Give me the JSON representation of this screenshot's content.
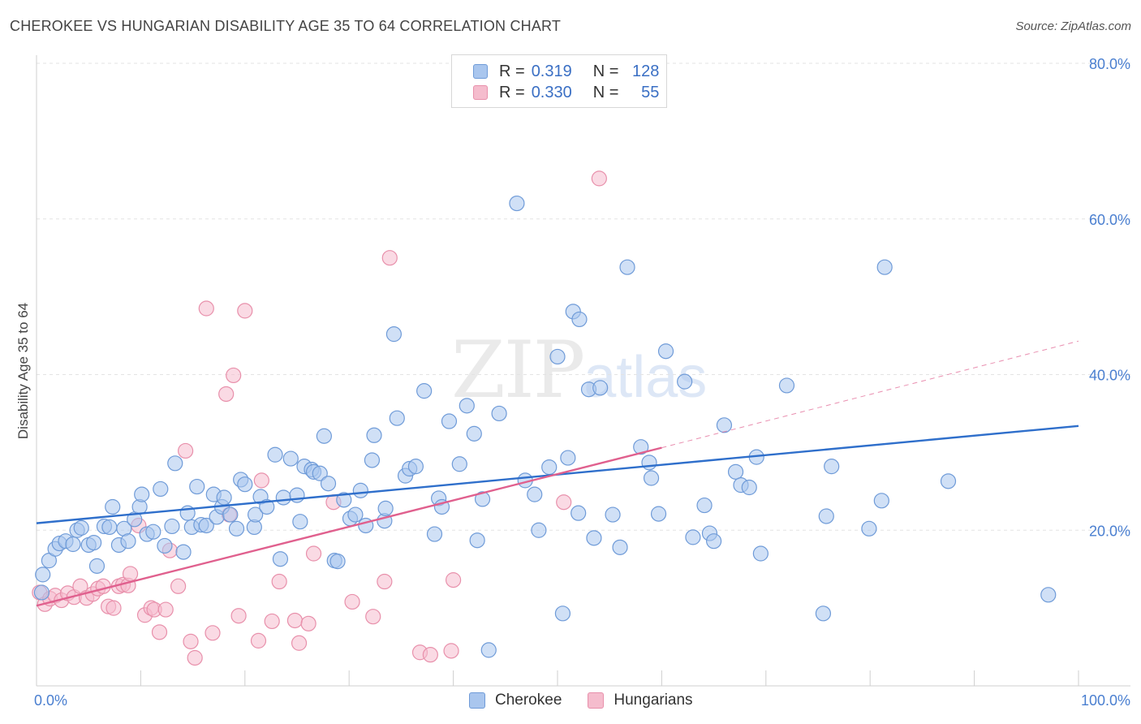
{
  "title": "CHEROKEE VS HUNGARIAN DISABILITY AGE 35 TO 64 CORRELATION CHART",
  "source": "Source: ZipAtlas.com",
  "watermark": {
    "zip": "ZIP",
    "atlas": "atlas"
  },
  "legend": {
    "rows": [
      {
        "r_label": "R =",
        "r_value": "0.319",
        "n_label": "N =",
        "n_value": "128"
      },
      {
        "r_label": "R =",
        "r_value": "0.330",
        "n_label": "N =",
        "n_value": "55"
      }
    ]
  },
  "bottom_legend": [
    "Cherokee",
    "Hungarians"
  ],
  "colors": {
    "cherokee_fill": "#a9c6ee",
    "cherokee_stroke": "#6f9bd8",
    "cherokee_line": "#2f6fcb",
    "hungarian_fill": "#f5bccd",
    "hungarian_stroke": "#e890ab",
    "hungarian_line": "#e0608e",
    "grid": "#e3e3e3",
    "tick_text": "#4a7fd0"
  },
  "chart_data": {
    "type": "scatter",
    "title": "CHEROKEE VS HUNGARIAN DISABILITY AGE 35 TO 64 CORRELATION CHART",
    "xlabel": "",
    "ylabel": "Disability Age 35 to 64",
    "xlim": [
      0,
      100
    ],
    "ylim": [
      0,
      80
    ],
    "x_tick_labels": [
      "0.0%",
      "100.0%"
    ],
    "y_ticks": [
      20,
      40,
      60,
      80
    ],
    "y_tick_labels": [
      "20.0%",
      "40.0%",
      "60.0%",
      "80.0%"
    ],
    "grid": "horizontal dashed",
    "legend_position": "top-center",
    "series": [
      {
        "name": "Cherokee",
        "R": 0.319,
        "N": 128,
        "trend": {
          "x": [
            0,
            100
          ],
          "y": [
            20.9,
            33.4
          ]
        },
        "points": [
          [
            0.5,
            12.0
          ],
          [
            0.6,
            14.3
          ],
          [
            1.2,
            16.1
          ],
          [
            1.8,
            17.6
          ],
          [
            2.2,
            18.3
          ],
          [
            2.8,
            18.6
          ],
          [
            3.5,
            18.2
          ],
          [
            3.9,
            20.0
          ],
          [
            4.3,
            20.3
          ],
          [
            5.0,
            18.1
          ],
          [
            5.5,
            18.4
          ],
          [
            5.8,
            15.4
          ],
          [
            6.5,
            20.5
          ],
          [
            7.0,
            20.4
          ],
          [
            7.3,
            23.0
          ],
          [
            7.9,
            18.1
          ],
          [
            8.4,
            20.2
          ],
          [
            8.8,
            18.6
          ],
          [
            9.4,
            21.4
          ],
          [
            9.9,
            23.0
          ],
          [
            10.1,
            24.6
          ],
          [
            10.6,
            19.5
          ],
          [
            11.2,
            19.8
          ],
          [
            11.9,
            25.3
          ],
          [
            12.3,
            18.0
          ],
          [
            13.0,
            20.5
          ],
          [
            13.3,
            28.6
          ],
          [
            14.1,
            17.2
          ],
          [
            14.5,
            22.2
          ],
          [
            14.9,
            20.4
          ],
          [
            15.4,
            25.6
          ],
          [
            15.8,
            20.7
          ],
          [
            16.3,
            20.6
          ],
          [
            17.0,
            24.6
          ],
          [
            17.3,
            21.7
          ],
          [
            17.8,
            23.0
          ],
          [
            18.0,
            24.2
          ],
          [
            18.6,
            22.0
          ],
          [
            19.2,
            20.2
          ],
          [
            19.6,
            26.5
          ],
          [
            20.0,
            25.9
          ],
          [
            20.9,
            20.4
          ],
          [
            21.0,
            22.0
          ],
          [
            21.5,
            24.3
          ],
          [
            22.1,
            23.0
          ],
          [
            22.9,
            29.7
          ],
          [
            23.4,
            16.3
          ],
          [
            23.7,
            24.2
          ],
          [
            24.4,
            29.2
          ],
          [
            25.0,
            24.5
          ],
          [
            25.3,
            21.1
          ],
          [
            25.7,
            28.2
          ],
          [
            26.4,
            27.8
          ],
          [
            26.6,
            27.5
          ],
          [
            27.2,
            27.3
          ],
          [
            27.6,
            32.1
          ],
          [
            28.0,
            26.0
          ],
          [
            28.6,
            16.1
          ],
          [
            28.9,
            16.0
          ],
          [
            29.5,
            23.9
          ],
          [
            30.1,
            21.5
          ],
          [
            30.6,
            22.0
          ],
          [
            31.1,
            25.1
          ],
          [
            31.6,
            20.6
          ],
          [
            32.2,
            29.0
          ],
          [
            32.4,
            32.2
          ],
          [
            33.4,
            21.2
          ],
          [
            33.5,
            22.8
          ],
          [
            34.3,
            45.2
          ],
          [
            34.6,
            34.4
          ],
          [
            35.4,
            27.0
          ],
          [
            35.8,
            27.9
          ],
          [
            36.4,
            28.2
          ],
          [
            37.2,
            37.9
          ],
          [
            38.2,
            19.5
          ],
          [
            38.6,
            24.1
          ],
          [
            38.9,
            23.0
          ],
          [
            39.6,
            34.0
          ],
          [
            40.6,
            28.5
          ],
          [
            41.3,
            36.0
          ],
          [
            42.0,
            32.4
          ],
          [
            42.3,
            18.7
          ],
          [
            42.8,
            24.0
          ],
          [
            44.4,
            35.0
          ],
          [
            43.4,
            4.6
          ],
          [
            46.1,
            62.0
          ],
          [
            46.9,
            26.4
          ],
          [
            47.8,
            24.6
          ],
          [
            48.2,
            20.0
          ],
          [
            49.2,
            28.1
          ],
          [
            50.0,
            42.3
          ],
          [
            50.5,
            9.3
          ],
          [
            51.0,
            29.3
          ],
          [
            51.5,
            48.1
          ],
          [
            52.1,
            47.1
          ],
          [
            52.0,
            22.2
          ],
          [
            53.0,
            38.1
          ],
          [
            53.5,
            19.0
          ],
          [
            54.1,
            38.3
          ],
          [
            55.3,
            22.0
          ],
          [
            56.0,
            17.8
          ],
          [
            56.7,
            53.8
          ],
          [
            58.0,
            30.7
          ],
          [
            58.8,
            28.7
          ],
          [
            59.0,
            26.7
          ],
          [
            59.7,
            22.1
          ],
          [
            60.4,
            43.0
          ],
          [
            62.2,
            39.1
          ],
          [
            63.0,
            19.1
          ],
          [
            64.1,
            23.2
          ],
          [
            64.6,
            19.6
          ],
          [
            65.0,
            18.6
          ],
          [
            66.0,
            33.5
          ],
          [
            67.1,
            27.5
          ],
          [
            67.6,
            25.8
          ],
          [
            68.4,
            25.5
          ],
          [
            69.1,
            29.4
          ],
          [
            69.5,
            17.0
          ],
          [
            72.0,
            38.6
          ],
          [
            75.5,
            9.3
          ],
          [
            75.8,
            21.8
          ],
          [
            76.3,
            28.2
          ],
          [
            79.9,
            20.2
          ],
          [
            81.1,
            23.8
          ],
          [
            81.4,
            53.8
          ],
          [
            87.5,
            26.3
          ],
          [
            97.1,
            11.7
          ]
        ]
      },
      {
        "name": "Hungarians",
        "R": 0.33,
        "N": 55,
        "trend": {
          "x": [
            0,
            60
          ],
          "y": [
            10.3,
            30.6
          ]
        },
        "dashed_extension": {
          "x": [
            60,
            100
          ],
          "y": [
            30.6,
            44.3
          ]
        },
        "points": [
          [
            0.3,
            12.0
          ],
          [
            0.8,
            10.5
          ],
          [
            1.3,
            11.2
          ],
          [
            1.8,
            11.6
          ],
          [
            2.4,
            11.0
          ],
          [
            3.0,
            11.9
          ],
          [
            3.6,
            11.4
          ],
          [
            4.2,
            12.8
          ],
          [
            4.8,
            11.3
          ],
          [
            5.4,
            11.8
          ],
          [
            5.9,
            12.5
          ],
          [
            6.4,
            12.8
          ],
          [
            6.9,
            10.2
          ],
          [
            7.4,
            10.0
          ],
          [
            7.9,
            12.8
          ],
          [
            8.3,
            13.0
          ],
          [
            8.8,
            12.9
          ],
          [
            9.0,
            14.4
          ],
          [
            9.8,
            20.6
          ],
          [
            10.4,
            9.1
          ],
          [
            11.0,
            10.0
          ],
          [
            11.3,
            9.8
          ],
          [
            11.8,
            6.9
          ],
          [
            12.4,
            9.8
          ],
          [
            12.8,
            17.4
          ],
          [
            13.6,
            12.8
          ],
          [
            14.8,
            5.7
          ],
          [
            14.3,
            30.2
          ],
          [
            15.2,
            3.6
          ],
          [
            16.3,
            48.5
          ],
          [
            16.9,
            6.8
          ],
          [
            18.2,
            37.5
          ],
          [
            18.5,
            22.0
          ],
          [
            18.9,
            39.9
          ],
          [
            19.4,
            9.0
          ],
          [
            20.0,
            48.2
          ],
          [
            21.3,
            5.8
          ],
          [
            21.6,
            26.4
          ],
          [
            22.6,
            8.3
          ],
          [
            23.3,
            13.4
          ],
          [
            24.8,
            8.4
          ],
          [
            25.2,
            5.5
          ],
          [
            26.1,
            8.0
          ],
          [
            26.6,
            17.0
          ],
          [
            28.5,
            23.6
          ],
          [
            30.3,
            10.8
          ],
          [
            32.3,
            8.9
          ],
          [
            33.4,
            13.4
          ],
          [
            33.9,
            55.0
          ],
          [
            36.8,
            4.3
          ],
          [
            37.8,
            4.0
          ],
          [
            40.0,
            13.6
          ],
          [
            39.8,
            4.5
          ],
          [
            50.6,
            23.6
          ],
          [
            54.0,
            65.2
          ]
        ]
      }
    ]
  }
}
